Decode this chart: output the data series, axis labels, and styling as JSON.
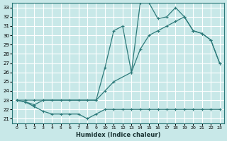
{
  "xlabel": "Humidex (Indice chaleur)",
  "background_color": "#c8e8e8",
  "grid_color": "#ffffff",
  "line_color": "#2d7a7a",
  "xlim": [
    -0.5,
    23.5
  ],
  "ylim": [
    20.5,
    33.5
  ],
  "xticks": [
    0,
    1,
    2,
    3,
    4,
    5,
    6,
    7,
    8,
    9,
    10,
    11,
    12,
    13,
    14,
    15,
    16,
    17,
    18,
    19,
    20,
    21,
    22,
    23
  ],
  "yticks": [
    21,
    22,
    23,
    24,
    25,
    26,
    27,
    28,
    29,
    30,
    31,
    32,
    33
  ],
  "series1_x": [
    0,
    1,
    2,
    3,
    4,
    5,
    6,
    7,
    8,
    9,
    10,
    11,
    12,
    13,
    14,
    15,
    16,
    17,
    18,
    19,
    20,
    21,
    22,
    23
  ],
  "series1_y": [
    23.0,
    22.8,
    22.3,
    21.8,
    21.5,
    21.5,
    21.5,
    21.5,
    21.0,
    21.5,
    22.0,
    22.0,
    22.0,
    22.0,
    22.0,
    22.0,
    22.0,
    22.0,
    22.0,
    22.0,
    22.0,
    22.0,
    22.0,
    22.0
  ],
  "series2_x": [
    0,
    1,
    2,
    3,
    4,
    5,
    6,
    7,
    8,
    9,
    10,
    11,
    12,
    13,
    14,
    15,
    16,
    17,
    18,
    19,
    20,
    21,
    22,
    23
  ],
  "series2_y": [
    23.0,
    22.8,
    22.5,
    23.0,
    23.0,
    23.0,
    23.0,
    23.0,
    23.0,
    23.0,
    26.5,
    30.5,
    31.0,
    26.0,
    33.5,
    33.5,
    31.8,
    32.0,
    33.0,
    32.0,
    30.5,
    30.2,
    29.5,
    27.0
  ],
  "series3_x": [
    0,
    1,
    2,
    3,
    9,
    10,
    11,
    13,
    14,
    15,
    16,
    17,
    18,
    19,
    20,
    21,
    22,
    23
  ],
  "series3_y": [
    23.0,
    23.0,
    23.0,
    23.0,
    23.0,
    24.0,
    25.0,
    26.0,
    28.5,
    30.0,
    30.5,
    31.0,
    31.5,
    32.0,
    30.5,
    30.2,
    29.5,
    27.0
  ]
}
